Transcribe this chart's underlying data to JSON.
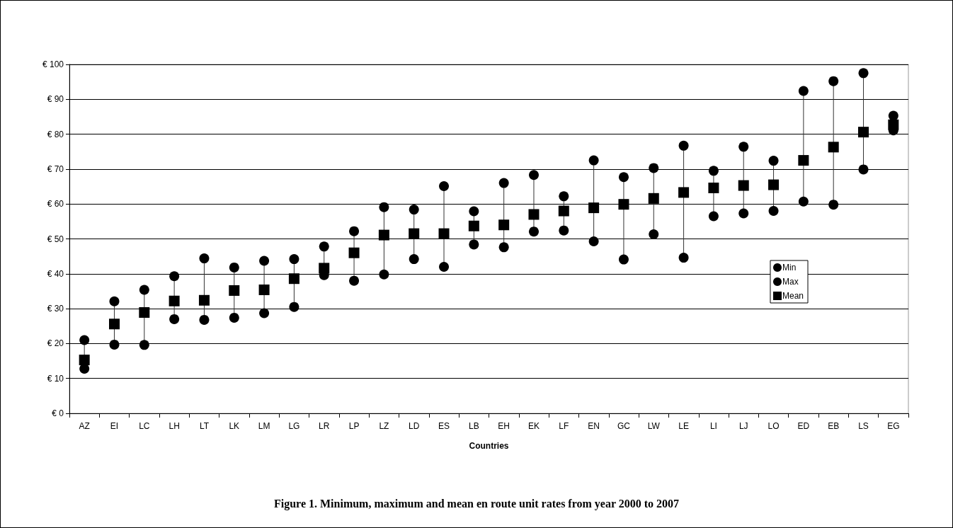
{
  "chart_data": {
    "type": "scatter",
    "title": "Figure 1. Minimum, maximum and mean en route unit rates from year 2000 to 2007",
    "xlabel": "Countries",
    "categories": [
      "AZ",
      "EI",
      "LC",
      "LH",
      "LT",
      "LK",
      "LM",
      "LG",
      "LR",
      "LP",
      "LZ",
      "LD",
      "ES",
      "LB",
      "EH",
      "EK",
      "LF",
      "EN",
      "GC",
      "LW",
      "LE",
      "LI",
      "LJ",
      "LO",
      "ED",
      "EB",
      "LS",
      "EG"
    ],
    "series": [
      {
        "name": "Min",
        "color": "#000000",
        "marker": "circle",
        "values": [
          12.8,
          19.7,
          19.6,
          27,
          26.8,
          27.4,
          28.7,
          30.5,
          39.6,
          38,
          39.8,
          44.2,
          42,
          48.4,
          47.6,
          52.1,
          52.4,
          49.3,
          44.1,
          51.3,
          44.6,
          56.5,
          57.3,
          58,
          60.7,
          59.8,
          69.9,
          81.1
        ]
      },
      {
        "name": "Max",
        "color": "#000000",
        "marker": "circle",
        "values": [
          21,
          32.1,
          35.4,
          39.3,
          44.4,
          41.8,
          43.7,
          44.2,
          47.8,
          52.2,
          59.1,
          58.4,
          65.1,
          57.9,
          66,
          68.3,
          62.2,
          72.5,
          67.7,
          70.3,
          76.7,
          69.5,
          76.4,
          72.4,
          92.4,
          95.2,
          97.5,
          85.3
        ]
      },
      {
        "name": "Mean",
        "color": "#000000",
        "marker": "square",
        "values": [
          15.3,
          25.6,
          28.9,
          32.2,
          32.4,
          35.2,
          35.4,
          38.6,
          41.6,
          46,
          51.1,
          51.5,
          51.5,
          53.7,
          54,
          57,
          58,
          58.9,
          59.9,
          61.6,
          63.3,
          64.6,
          65.3,
          65.5,
          72.5,
          76.3,
          80.6,
          82.7
        ]
      }
    ],
    "ylim": [
      0,
      100
    ],
    "yticks": [
      {
        "value": 0,
        "label": "€ 0"
      },
      {
        "value": 10,
        "label": "€ 10"
      },
      {
        "value": 20,
        "label": "€ 20"
      },
      {
        "value": 30,
        "label": "€ 30"
      },
      {
        "value": 40,
        "label": "€ 40"
      },
      {
        "value": 50,
        "label": "€ 50"
      },
      {
        "value": 60,
        "label": "€ 60"
      },
      {
        "value": 70,
        "label": "€ 70"
      },
      {
        "value": 80,
        "label": "€ 80"
      },
      {
        "value": 90,
        "label": "€ 90"
      },
      {
        "value": 100,
        "label": "€ 100"
      }
    ],
    "grid": "y",
    "legend": "right"
  }
}
